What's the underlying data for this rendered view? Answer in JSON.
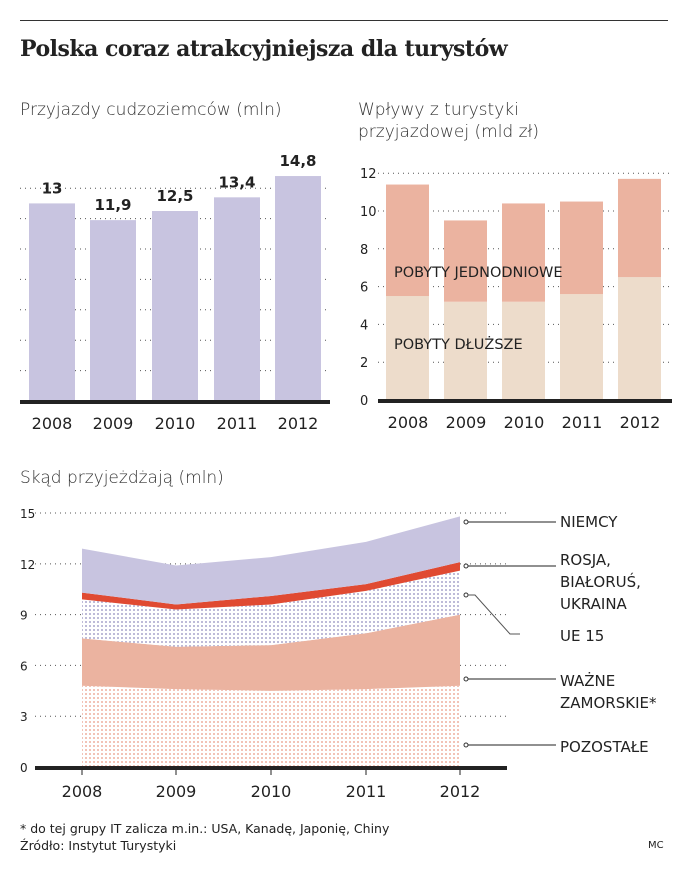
{
  "title": "Polska coraz atrakcyjniejsza dla turystów",
  "footnote": "* do tej grupy IT zalicza m.in.: USA, Kanadę, Japonię, Chiny",
  "source": "Źródło: Instytut Turystyki",
  "credit": "MC",
  "colors": {
    "lavender": "#c8c4e0",
    "salmon": "#ebb3a0",
    "beige": "#eddccb",
    "red": "#e04a32"
  },
  "chart_data": [
    {
      "type": "bar",
      "title": "Przyjazdy cudzoziemców (mln)",
      "categories": [
        "2008",
        "2009",
        "2010",
        "2011",
        "2012"
      ],
      "values": [
        13,
        11.9,
        12.5,
        13.4,
        14.8
      ],
      "data_labels": [
        "13",
        "11,9",
        "12,5",
        "13,4",
        "14,8"
      ],
      "grid": true
    },
    {
      "type": "bar",
      "stacked": true,
      "title_lines": [
        "Wpływy z turystyki",
        "przyjazdowej (mld zł)"
      ],
      "categories": [
        "2008",
        "2009",
        "2010",
        "2011",
        "2012"
      ],
      "ylim": [
        0,
        12
      ],
      "yticks": [
        "0",
        "2",
        "4",
        "6",
        "8",
        "10",
        "12"
      ],
      "series": [
        {
          "name": "POBYTY DŁUŻSZE",
          "values": [
            5.5,
            5.2,
            5.2,
            5.6,
            6.5
          ],
          "color": "#eddccb"
        },
        {
          "name": "POBYTY JEDNODNIOWE",
          "values": [
            5.9,
            4.3,
            5.2,
            4.9,
            5.2
          ],
          "color": "#ebb3a0"
        }
      ],
      "grid": true
    },
    {
      "type": "area",
      "stacked": true,
      "title": "Skąd przyjeżdżają (mln)",
      "categories": [
        "2008",
        "2009",
        "2010",
        "2011",
        "2012"
      ],
      "ylim": [
        0,
        15
      ],
      "yticks": [
        "0",
        "3",
        "6",
        "9",
        "12",
        "15"
      ],
      "series": [
        {
          "name": "POZOSTAŁE",
          "values": [
            4.8,
            4.6,
            4.5,
            4.6,
            4.8
          ],
          "color": "#f2c8bc",
          "pattern": "dots"
        },
        {
          "name": "WAŻNE ZAMORSKIE*",
          "values": [
            2.8,
            2.5,
            2.7,
            3.3,
            4.2
          ],
          "color": "#ebb3a0"
        },
        {
          "name": "UE 15",
          "values": [
            2.3,
            2.2,
            2.4,
            2.5,
            2.6
          ],
          "color": "#c8c4e0",
          "pattern": "dots"
        },
        {
          "name": "ROSJA, BIAŁORUŚ, UKRAINA",
          "values": [
            0.4,
            0.3,
            0.5,
            0.4,
            0.5
          ],
          "color": "#e04a32"
        },
        {
          "name": "NIEMCY",
          "values": [
            2.6,
            2.3,
            2.3,
            2.5,
            2.7
          ],
          "color": "#c8c4e0"
        }
      ],
      "grid": true
    }
  ]
}
